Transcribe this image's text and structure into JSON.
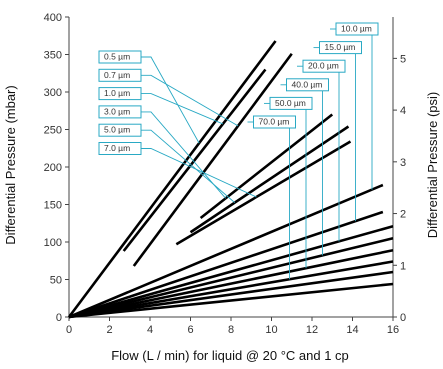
{
  "chart_data": {
    "type": "line",
    "xlabel": "Flow (L / min) for liquid @ 20 °C and 1 cp",
    "ylabel": "Differential Pressure (mbar)",
    "y2label": "Differential Pressure (psi)",
    "xlim": [
      0,
      16
    ],
    "ylim": [
      0,
      400
    ],
    "y2lim": [
      0,
      5.8
    ],
    "xticks": [
      "0",
      "2",
      "4",
      "6",
      "8",
      "10",
      "12",
      "14",
      "16"
    ],
    "yticks": [
      "0",
      "50",
      "100",
      "150",
      "200",
      "250",
      "300",
      "350",
      "400"
    ],
    "y2ticks": [
      "0",
      "1",
      "2",
      "3",
      "4",
      "5"
    ],
    "grid": false,
    "series": [
      {
        "name": "0.5 µm",
        "x": [
          0,
          10.2
        ],
        "y": [
          0,
          368
        ]
      },
      {
        "name": "0.7 µm",
        "x": [
          3.2,
          11.0
        ],
        "y": [
          68,
          351
        ]
      },
      {
        "name": "1.0 µm",
        "x": [
          2.7,
          9.7
        ],
        "y": [
          88,
          330
        ]
      },
      {
        "name": "3.0 µm",
        "x": [
          6.5,
          13.0
        ],
        "y": [
          132,
          270
        ]
      },
      {
        "name": "5.0 µm",
        "x": [
          6.0,
          13.8
        ],
        "y": [
          113,
          254
        ]
      },
      {
        "name": "7.0 µm",
        "x": [
          5.3,
          13.9
        ],
        "y": [
          97,
          234
        ]
      },
      {
        "name": "10.0 µm",
        "x": [
          0,
          15.5
        ],
        "y": [
          0,
          176
        ]
      },
      {
        "name": "15.0 µm",
        "x": [
          0,
          15.5
        ],
        "y": [
          0,
          140
        ]
      },
      {
        "name": "20.0 µm",
        "x": [
          0,
          16
        ],
        "y": [
          0,
          121
        ]
      },
      {
        "name": "40.0 µm",
        "x": [
          0,
          16
        ],
        "y": [
          0,
          105
        ]
      },
      {
        "name": "50.0 µm",
        "x": [
          0,
          16
        ],
        "y": [
          0,
          89
        ]
      },
      {
        "name": "70.0 µm",
        "x": [
          0,
          16
        ],
        "y": [
          0,
          74
        ]
      },
      {
        "name": "",
        "x": [
          0,
          16
        ],
        "y": [
          0,
          60
        ]
      },
      {
        "name": "",
        "x": [
          0,
          16
        ],
        "y": [
          0,
          44
        ]
      }
    ]
  },
  "theme": {
    "line_color": "#000000",
    "callout_color": "#29a9c4",
    "axis_color": "#444444"
  }
}
